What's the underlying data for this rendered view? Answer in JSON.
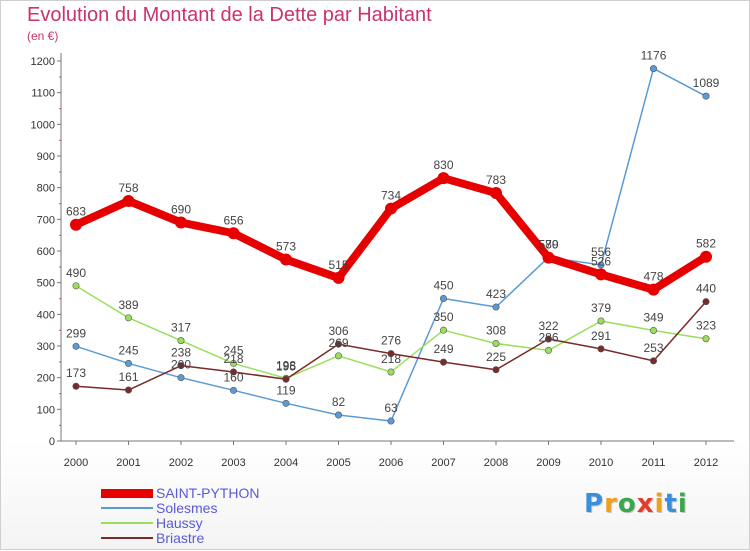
{
  "title": "Evolution du Montant de la Dette par Habitant",
  "unit": "(en €)",
  "logo": {
    "letters": [
      "P",
      "r",
      "o",
      "x",
      "i",
      "t",
      "i"
    ],
    "colors": [
      "#3a8fd9",
      "#f0a020",
      "#3aa84a",
      "#e63a2a",
      "#f0a020",
      "#3a8fd9",
      "#3aa84a"
    ]
  },
  "chart_data": {
    "type": "line",
    "x": [
      "2000",
      "2001",
      "2002",
      "2003",
      "2004",
      "2005",
      "2006",
      "2007",
      "2008",
      "2009",
      "2010",
      "2011",
      "2012"
    ],
    "ylim": [
      0,
      1200
    ],
    "yticks": [
      0,
      100,
      200,
      300,
      400,
      500,
      600,
      700,
      800,
      900,
      1000,
      1100,
      1200
    ],
    "grid": false,
    "legend_position": "bottom-left",
    "series": [
      {
        "name": "SAINT-PYTHON",
        "color": "#e60000",
        "width": "thick",
        "values": [
          683,
          758,
          690,
          656,
          573,
          515,
          734,
          830,
          783,
          579,
          526,
          478,
          582
        ]
      },
      {
        "name": "Solesmes",
        "color": "#5b9bd5",
        "width": "thin",
        "values": [
          299,
          245,
          200,
          160,
          119,
          82,
          63,
          450,
          423,
          580,
          556,
          1176,
          1089
        ]
      },
      {
        "name": "Haussy",
        "color": "#99e05a",
        "width": "thin",
        "values": [
          490,
          389,
          317,
          245,
          198,
          269,
          218,
          350,
          308,
          286,
          379,
          349,
          323
        ]
      },
      {
        "name": "Briastre",
        "color": "#7a2a2a",
        "width": "thin",
        "values": [
          173,
          161,
          238,
          218,
          195,
          306,
          276,
          249,
          225,
          322,
          291,
          253,
          440
        ]
      }
    ]
  }
}
